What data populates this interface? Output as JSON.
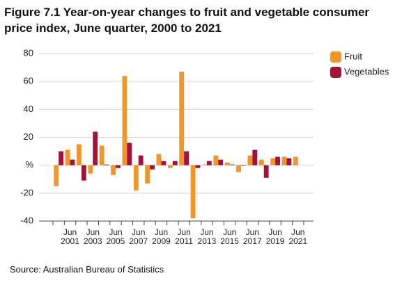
{
  "chart_data": {
    "type": "bar",
    "title": "Figure 7.1 Year-on-year changes to fruit and vegetable consumer price index, June quarter, 2000 to 2021",
    "source": "Source: Australian Bureau of Statistics",
    "categories": [
      null,
      "Jun 2001",
      null,
      "Jun 2003",
      null,
      "Jun 2005",
      null,
      "Jun 2007",
      null,
      "Jun 2009",
      null,
      "Jun 2011",
      null,
      "Jun 2013",
      null,
      "Jun 2015",
      null,
      "Jun 2017",
      null,
      "Jun 2019",
      null,
      "Jun 2021"
    ],
    "series": [
      {
        "name": "Fruit",
        "color": "#f0962a",
        "values": [
          -15,
          11,
          15,
          -6,
          14,
          -7,
          64,
          -18,
          -13,
          8,
          -2,
          67,
          -38,
          0.5,
          7,
          2,
          -5,
          7,
          4,
          5,
          6,
          6
        ]
      },
      {
        "name": "Vegetables",
        "color": "#a3123a",
        "values": [
          10,
          4,
          -11,
          24,
          0.5,
          -2,
          16,
          7,
          -3,
          3,
          3,
          10,
          -2,
          3,
          4,
          0.5,
          0,
          11,
          -9,
          6,
          5,
          null
        ]
      }
    ],
    "ylim": [
      -40,
      80
    ],
    "yticks": [
      -40,
      -20,
      {
        "value": 0,
        "label": "%"
      },
      20,
      40,
      60,
      80
    ],
    "grid": true,
    "legend": "right"
  }
}
